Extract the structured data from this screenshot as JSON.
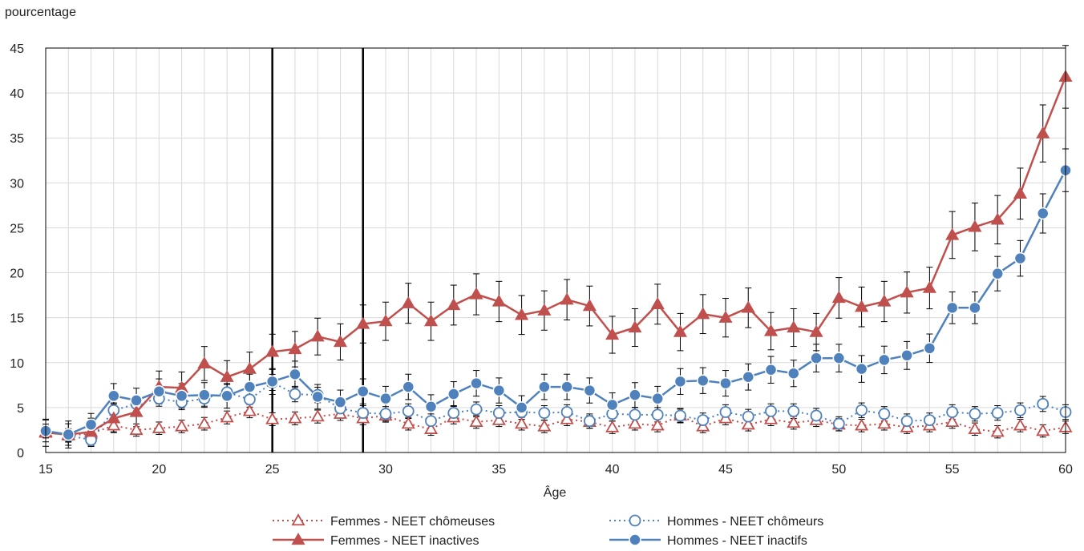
{
  "chart_data": {
    "type": "line",
    "ylabel": "pourcentage",
    "xlabel": "Âge",
    "xlim": [
      15,
      60
    ],
    "ylim": [
      0,
      45
    ],
    "x_ticks": [
      15,
      20,
      25,
      30,
      35,
      40,
      45,
      50,
      55,
      60
    ],
    "y_ticks": [
      0,
      5,
      10,
      15,
      20,
      25,
      30,
      35,
      40,
      45
    ],
    "grid": true,
    "legend_position": "bottom",
    "reference_lines_x": [
      25,
      29
    ],
    "x": [
      15,
      16,
      17,
      18,
      19,
      20,
      21,
      22,
      23,
      24,
      25,
      26,
      27,
      28,
      29,
      30,
      31,
      32,
      33,
      34,
      35,
      36,
      37,
      38,
      39,
      40,
      41,
      42,
      43,
      44,
      45,
      46,
      47,
      48,
      49,
      50,
      51,
      52,
      53,
      54,
      55,
      56,
      57,
      58,
      59,
      60
    ],
    "series": [
      {
        "name": "Femmes - NEET chômeuses",
        "color": "#c0504d",
        "line": "dotted",
        "marker": "triangle-open",
        "values": [
          2.3,
          1.9,
          2.1,
          3.0,
          2.5,
          2.7,
          2.9,
          3.2,
          3.9,
          4.6,
          3.7,
          3.8,
          4.0,
          4.3,
          3.8,
          4.1,
          3.2,
          2.6,
          3.9,
          3.4,
          3.6,
          3.2,
          2.9,
          3.7,
          3.4,
          2.8,
          3.2,
          3.0,
          4.1,
          2.9,
          3.8,
          3.1,
          3.7,
          3.3,
          3.6,
          3.1,
          3.0,
          3.2,
          2.8,
          3.0,
          3.4,
          2.6,
          2.3,
          3.0,
          2.4,
          2.8
        ]
      },
      {
        "name": "Hommes - NEET chômeurs",
        "color": "#4f81bd",
        "line": "dotted",
        "marker": "circle-open",
        "values": [
          2.4,
          1.9,
          1.4,
          4.7,
          5.4,
          6.0,
          5.6,
          6.0,
          6.7,
          5.9,
          7.8,
          6.5,
          6.4,
          4.9,
          4.4,
          4.3,
          4.6,
          3.5,
          4.4,
          4.8,
          4.4,
          4.5,
          4.4,
          4.5,
          3.5,
          4.3,
          4.2,
          4.2,
          4.1,
          3.6,
          4.5,
          4.0,
          4.6,
          4.6,
          4.1,
          3.2,
          4.7,
          4.3,
          3.5,
          3.6,
          4.5,
          4.3,
          4.4,
          4.7,
          5.4,
          4.5
        ]
      },
      {
        "name": "Femmes - NEET inactives",
        "color": "#c0504d",
        "line": "solid",
        "marker": "triangle-filled",
        "values": [
          2.2,
          2.0,
          2.3,
          3.8,
          4.5,
          7.3,
          7.2,
          9.9,
          8.4,
          9.3,
          11.2,
          11.5,
          12.9,
          12.3,
          14.3,
          14.6,
          16.6,
          14.6,
          16.4,
          17.6,
          16.8,
          15.3,
          15.8,
          17.0,
          16.3,
          13.1,
          13.9,
          16.5,
          13.4,
          15.4,
          15.0,
          16.1,
          13.5,
          13.9,
          13.4,
          17.2,
          16.2,
          16.8,
          17.8,
          18.3,
          24.2,
          25.1,
          25.9,
          28.8,
          35.5,
          41.8
        ]
      },
      {
        "name": "Hommes - NEET inactifs",
        "color": "#4f81bd",
        "line": "solid",
        "marker": "circle-filled",
        "values": [
          2.4,
          2.0,
          3.1,
          6.3,
          5.8,
          6.8,
          6.3,
          6.4,
          6.3,
          7.3,
          7.9,
          8.7,
          6.2,
          5.6,
          6.8,
          6.0,
          7.3,
          5.1,
          6.5,
          7.7,
          6.9,
          5.0,
          7.3,
          7.3,
          6.9,
          5.3,
          6.4,
          6.0,
          7.9,
          8.0,
          7.7,
          8.4,
          9.2,
          8.8,
          10.5,
          10.5,
          9.3,
          10.3,
          10.8,
          11.6,
          16.1,
          16.1,
          19.9,
          21.6,
          26.6,
          31.4
        ]
      }
    ],
    "error_margin": {
      "Femmes - NEET chômeuses": 0.9,
      "Hommes - NEET chômeurs": 1.0,
      "Femmes - NEET inactives": 2.0,
      "Hommes - NEET inactifs": 1.6
    }
  },
  "legend": {
    "items": [
      {
        "label": "Femmes - NEET chômeuses",
        "icon": "triangle-open-dotted"
      },
      {
        "label": "Hommes - NEET chômeurs",
        "icon": "circle-open-dotted"
      },
      {
        "label": "Femmes - NEET inactives",
        "icon": "triangle-filled-solid"
      },
      {
        "label": "Hommes - NEET inactifs",
        "icon": "circle-filled-solid"
      }
    ]
  }
}
